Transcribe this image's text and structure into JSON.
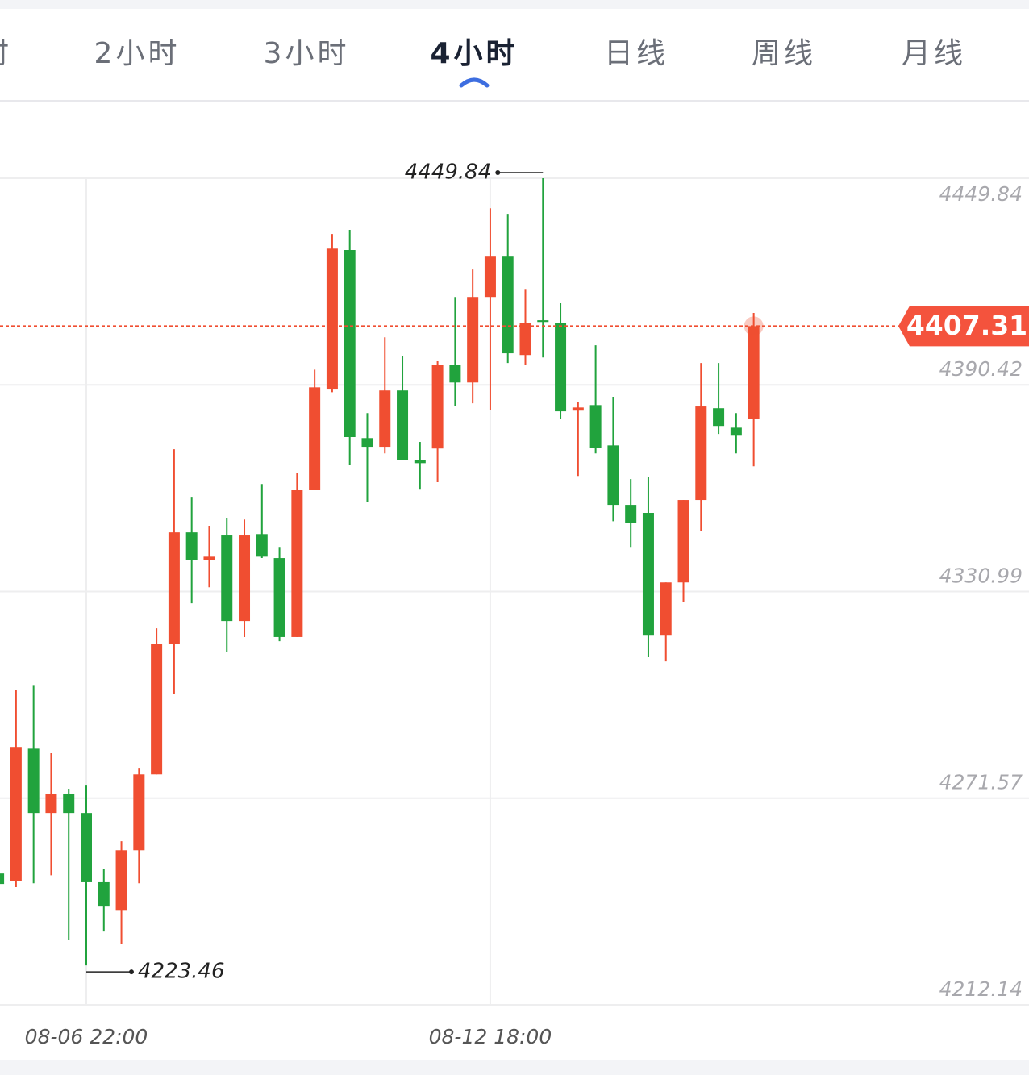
{
  "tabs": [
    "时",
    "2小时",
    "3小时",
    "4小时",
    "日线",
    "周线",
    "月线"
  ],
  "active_tab": 3,
  "chart_data": {
    "type": "candlestick",
    "categories": [
      null,
      null,
      null,
      null,
      null,
      "08-06 22:00",
      null,
      null,
      null,
      null,
      null,
      null,
      null,
      null,
      null,
      null,
      null,
      null,
      null,
      null,
      null,
      null,
      null,
      null,
      null,
      null,
      null,
      null,
      "08-12 18:00",
      null,
      null,
      null,
      null,
      null,
      null,
      null,
      null,
      null,
      null,
      null,
      null,
      null,
      null,
      null
    ],
    "open": [
      4249.9,
      4247.8,
      4285.8,
      4267.3,
      4272.9,
      4267.3,
      4247.4,
      4239.2,
      4256.6,
      4278.4,
      4316.0,
      4348.0,
      4340.1,
      4347.1,
      4322.5,
      4347.5,
      4340.6,
      4317.9,
      4360.1,
      4389.3,
      4429.2,
      4375.1,
      4372.6,
      4388.8,
      4368.9,
      4372.1,
      4396.2,
      4391.1,
      4415.7,
      4427.3,
      4399.0,
      4409.0,
      4408.3,
      4383.0,
      4384.6,
      4373.0,
      4355.9,
      4353.6,
      4318.3,
      4333.6,
      4357.3,
      4383.7,
      4378.1,
      4380.5
    ],
    "high": [
      4250.6,
      4302.6,
      4303.9,
      4284.5,
      4274.3,
      4275.2,
      4251.1,
      4259.2,
      4280.3,
      4320.4,
      4371.9,
      4358.2,
      4349.9,
      4352.2,
      4351.7,
      4361.9,
      4343.8,
      4365.2,
      4394.8,
      4433.8,
      4435.0,
      4382.3,
      4404.1,
      4398.6,
      4374.0,
      4397.2,
      4415.7,
      4423.6,
      4441.2,
      4439.6,
      4418.0,
      4449.84,
      4413.9,
      4385.6,
      4401.8,
      4387.0,
      4363.3,
      4363.8,
      4333.6,
      4357.3,
      4396.7,
      4396.7,
      4382.3,
      4411.1
    ],
    "low": [
      4246.4,
      4246.0,
      4247.1,
      4249.4,
      4230.9,
      4223.46,
      4233.2,
      4229.7,
      4247.1,
      4278.4,
      4301.6,
      4327.6,
      4332.2,
      4313.7,
      4317.9,
      4340.6,
      4316.7,
      4317.9,
      4360.1,
      4388.3,
      4367.5,
      4356.8,
      4370.7,
      4368.9,
      4360.5,
      4362.4,
      4384.2,
      4385.1,
      4383.2,
      4396.7,
      4396.2,
      4398.3,
      4380.5,
      4364.2,
      4370.7,
      4351.2,
      4343.8,
      4312.1,
      4310.9,
      4328.1,
      4348.5,
      4376.3,
      4370.7,
      4367.0
    ],
    "close": [
      4246.9,
      4286.3,
      4267.3,
      4272.9,
      4267.3,
      4247.4,
      4240.4,
      4256.6,
      4278.4,
      4316.0,
      4348.0,
      4340.1,
      4341.0,
      4322.5,
      4347.1,
      4341.0,
      4317.9,
      4360.1,
      4389.7,
      4429.6,
      4375.4,
      4372.6,
      4388.8,
      4368.9,
      4367.9,
      4396.2,
      4391.1,
      4415.7,
      4427.3,
      4399.5,
      4408.3,
      4408.5,
      4382.8,
      4383.9,
      4372.3,
      4355.9,
      4350.8,
      4318.3,
      4333.6,
      4357.3,
      4384.2,
      4378.6,
      4375.8,
      4407.31
    ],
    "up_color": "#f04e31",
    "down_color": "#21a33d",
    "ylim": [
      4212.14,
      4449.84
    ],
    "yticks": [
      4449.84,
      4390.42,
      4330.99,
      4271.57,
      4212.14
    ],
    "grid": true,
    "last_price_line": true
  }
}
